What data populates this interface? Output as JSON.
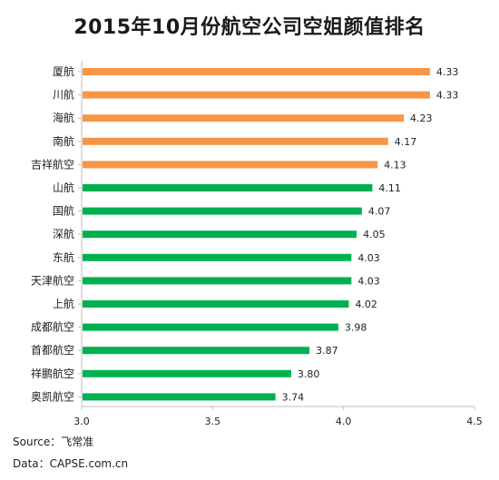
{
  "chart_data": {
    "type": "bar",
    "orientation": "horizontal",
    "title": "2015年10月份航空公司空姐颜值排名",
    "categories": [
      "厦航",
      "川航",
      "海航",
      "南航",
      "吉祥航空",
      "山航",
      "国航",
      "深航",
      "东航",
      "天津航空",
      "上航",
      "成都航空",
      "首都航空",
      "祥鹏航空",
      "奥凯航空"
    ],
    "values": [
      4.33,
      4.33,
      4.23,
      4.17,
      4.13,
      4.11,
      4.07,
      4.05,
      4.03,
      4.03,
      4.02,
      3.98,
      3.87,
      3.8,
      3.74
    ],
    "value_labels": [
      "4.33",
      "4.33",
      "4.23",
      "4.17",
      "4.13",
      "4.11",
      "4.07",
      "4.05",
      "4.03",
      "4.03",
      "4.02",
      "3.98",
      "3.87",
      "3.80",
      "3.74"
    ],
    "bar_colors": [
      "#f79646",
      "#f79646",
      "#f79646",
      "#f79646",
      "#f79646",
      "#00b050",
      "#00b050",
      "#00b050",
      "#00b050",
      "#00b050",
      "#00b050",
      "#00b050",
      "#00b050",
      "#00b050",
      "#00b050"
    ],
    "xlim": [
      3.0,
      4.5
    ],
    "xticks": [
      3.0,
      3.5,
      4.0,
      4.5
    ],
    "xtick_labels": [
      "3.0",
      "3.5",
      "4.0",
      "4.5"
    ],
    "xlabel": "",
    "ylabel": "",
    "grid": false,
    "legend": "none"
  },
  "footer": {
    "source": "Source：飞常准",
    "data": "Data：CAPSE.com.cn"
  }
}
